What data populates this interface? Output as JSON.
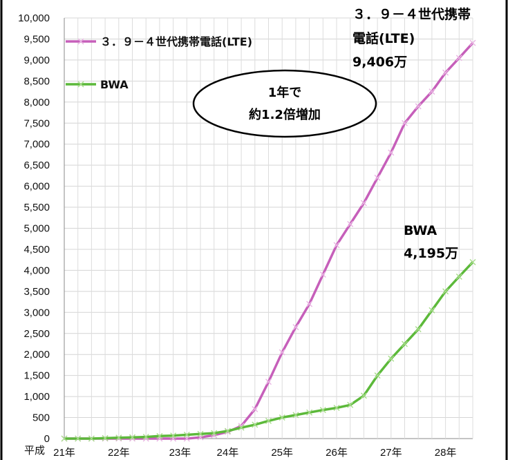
{
  "chart_data": {
    "type": "line",
    "title": "",
    "xlabel_prefix": "平成",
    "ylim": [
      0,
      10000
    ],
    "ytick_step": 500,
    "yticks": [
      "0",
      "500",
      "1,000",
      "1,500",
      "2,000",
      "2,500",
      "3,000",
      "3,500",
      "4,000",
      "4,500",
      "5,000",
      "5,500",
      "6,000",
      "6,500",
      "7,000",
      "7,500",
      "8,000",
      "8,500",
      "9,000",
      "9,500",
      "10,000"
    ],
    "xtick_labels": [
      {
        "label": "21年",
        "at": 0
      },
      {
        "label": "22年",
        "at": 4
      },
      {
        "label": "23年",
        "at": 8.5
      },
      {
        "label": "24年",
        "at": 12
      },
      {
        "label": "25年",
        "at": 16
      },
      {
        "label": "26年",
        "at": 20
      },
      {
        "label": "27年",
        "at": 24
      },
      {
        "label": "28年",
        "at": 28
      }
    ],
    "grid": true,
    "legend_position": "top-left",
    "series": [
      {
        "name": "３．９－４世代携帯電話(LTE)",
        "color": "#c65fba",
        "values": [
          0,
          0,
          0,
          0,
          0,
          0,
          0,
          0,
          0,
          0,
          30,
          80,
          160,
          300,
          700,
          1350,
          2050,
          2650,
          3200,
          3900,
          4600,
          5100,
          5600,
          6200,
          6800,
          7500,
          7900,
          8250,
          8700,
          9050,
          9406
        ]
      },
      {
        "name": "BWA",
        "color": "#5cb93a",
        "values": [
          0,
          0,
          0,
          10,
          20,
          30,
          40,
          60,
          70,
          90,
          110,
          130,
          180,
          260,
          330,
          420,
          500,
          560,
          620,
          680,
          730,
          800,
          1020,
          1500,
          1900,
          2250,
          2600,
          3050,
          3500,
          3850,
          4195
        ]
      }
    ],
    "annotations": {
      "lte_line1": "３．９－４世代携帯",
      "lte_line2": "電話(LTE)",
      "lte_value": "9,406万",
      "bwa_line1": "BWA",
      "bwa_value": "4,195万",
      "bubble_line1": "1年で",
      "bubble_line2": "約1.2倍増加"
    }
  }
}
